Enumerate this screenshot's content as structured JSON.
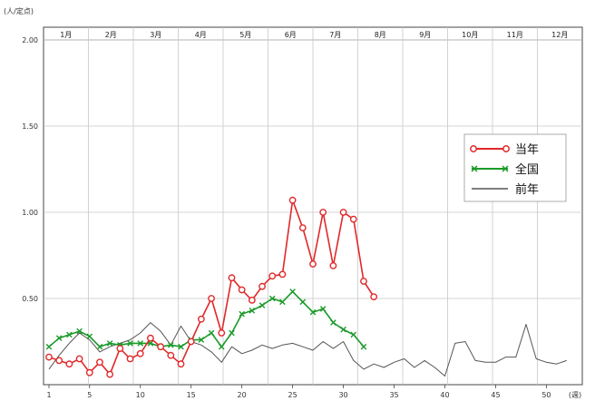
{
  "chart_data": {
    "type": "line",
    "unit_label": "(人/定点)",
    "months": [
      "1月",
      "2月",
      "3月",
      "4月",
      "5月",
      "6月",
      "7月",
      "8月",
      "9月",
      "10月",
      "11月",
      "12月"
    ],
    "x_ticks": [
      "1",
      "5",
      "10",
      "15",
      "20",
      "25",
      "30",
      "35",
      "40",
      "45",
      "50"
    ],
    "x_unit": "(週)",
    "y_ticks": [
      "0.50",
      "1.00",
      "1.50",
      "2.00"
    ],
    "ylim": [
      0,
      2.0
    ],
    "xlim": [
      1,
      53
    ],
    "series": [
      {
        "name": "当年",
        "color": "#e0282a",
        "marker": "circle",
        "x": [
          1,
          2,
          3,
          4,
          5,
          6,
          7,
          8,
          9,
          10,
          11,
          12,
          13,
          14,
          15,
          16,
          17,
          18,
          19,
          20,
          21,
          22,
          23,
          24,
          25,
          26,
          27,
          28,
          29,
          30,
          31,
          32,
          33
        ],
        "y": [
          0.16,
          0.14,
          0.12,
          0.15,
          0.07,
          0.13,
          0.06,
          0.21,
          0.15,
          0.18,
          0.27,
          0.22,
          0.17,
          0.12,
          0.25,
          0.38,
          0.5,
          0.3,
          0.62,
          0.55,
          0.49,
          0.57,
          0.63,
          0.64,
          1.07,
          0.91,
          0.7,
          1.0,
          0.69,
          1.0,
          0.96,
          0.6,
          0.51
        ]
      },
      {
        "name": "全国",
        "color": "#1a9a2a",
        "marker": "x",
        "x": [
          1,
          2,
          3,
          4,
          5,
          6,
          7,
          8,
          9,
          10,
          11,
          12,
          13,
          14,
          15,
          16,
          17,
          18,
          19,
          20,
          21,
          22,
          23,
          24,
          25,
          26,
          27,
          28,
          29,
          30,
          31,
          32
        ],
        "y": [
          0.22,
          0.27,
          0.29,
          0.31,
          0.28,
          0.22,
          0.24,
          0.23,
          0.24,
          0.24,
          0.24,
          0.22,
          0.23,
          0.22,
          0.26,
          0.26,
          0.3,
          0.22,
          0.3,
          0.41,
          0.43,
          0.46,
          0.5,
          0.48,
          0.54,
          0.48,
          0.42,
          0.44,
          0.36,
          0.32,
          0.29,
          0.22
        ]
      },
      {
        "name": "前年",
        "color": "#555555",
        "marker": "none",
        "x": [
          1,
          2,
          3,
          4,
          5,
          6,
          7,
          8,
          9,
          10,
          11,
          12,
          13,
          14,
          15,
          16,
          17,
          18,
          19,
          20,
          21,
          22,
          23,
          24,
          25,
          26,
          27,
          28,
          29,
          30,
          31,
          32,
          33,
          34,
          35,
          36,
          37,
          38,
          39,
          40,
          41,
          42,
          43,
          44,
          45,
          46,
          47,
          48,
          49,
          50,
          51,
          52
        ],
        "y": [
          0.09,
          0.17,
          0.24,
          0.3,
          0.26,
          0.19,
          0.22,
          0.24,
          0.26,
          0.3,
          0.36,
          0.31,
          0.23,
          0.34,
          0.25,
          0.23,
          0.19,
          0.13,
          0.22,
          0.18,
          0.2,
          0.23,
          0.21,
          0.23,
          0.24,
          0.22,
          0.2,
          0.25,
          0.21,
          0.25,
          0.14,
          0.09,
          0.12,
          0.1,
          0.13,
          0.15,
          0.1,
          0.14,
          0.1,
          0.05,
          0.24,
          0.25,
          0.14,
          0.13,
          0.13,
          0.16,
          0.16,
          0.35,
          0.15,
          0.13,
          0.12,
          0.14
        ]
      }
    ]
  }
}
